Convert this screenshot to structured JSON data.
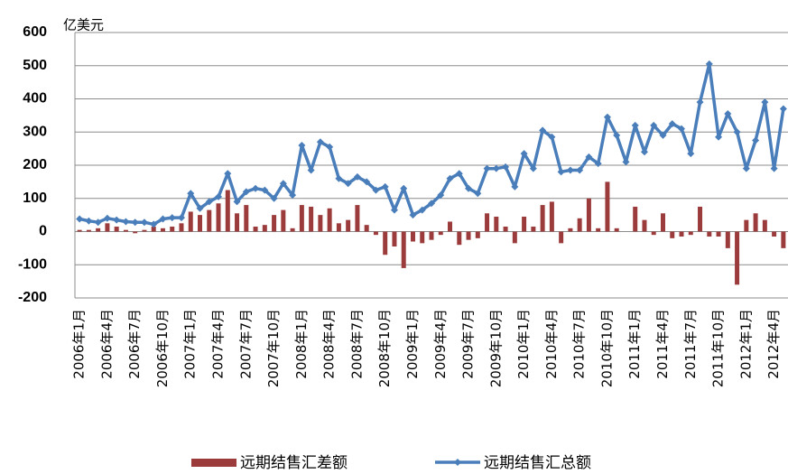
{
  "chart_data": {
    "type": "combo",
    "y_unit": "亿美元",
    "categories": [
      "2006年1月",
      null,
      null,
      "2006年4月",
      null,
      null,
      "2006年7月",
      null,
      null,
      "2006年10月",
      null,
      null,
      "2007年1月",
      null,
      null,
      "2007年4月",
      null,
      null,
      "2007年7月",
      null,
      null,
      "2007年10月",
      null,
      null,
      "2008年1月",
      null,
      null,
      "2008年4月",
      null,
      null,
      "2008年7月",
      null,
      null,
      "2008年10月",
      null,
      null,
      "2009年1月",
      null,
      null,
      "2009年4月",
      null,
      null,
      "2009年7月",
      null,
      null,
      "2009年10月",
      null,
      null,
      "2010年1月",
      null,
      null,
      "2010年4月",
      null,
      null,
      "2010年7月",
      null,
      null,
      "2010年10月",
      null,
      null,
      "2011年1月",
      null,
      null,
      "2011年4月",
      null,
      null,
      "2011年7月",
      null,
      null,
      "2011年10月",
      null,
      null,
      "2012年1月",
      null,
      null,
      "2012年4月",
      null
    ],
    "series": [
      {
        "name": "远期结售汇差额",
        "type": "bar",
        "color": "#9b3b3b",
        "values": [
          5,
          5,
          10,
          25,
          15,
          5,
          -5,
          5,
          15,
          10,
          15,
          25,
          60,
          50,
          65,
          85,
          125,
          55,
          80,
          15,
          20,
          50,
          65,
          10,
          80,
          75,
          50,
          70,
          25,
          35,
          80,
          20,
          -10,
          -70,
          -45,
          -110,
          -30,
          -35,
          -25,
          -10,
          30,
          -40,
          -25,
          -20,
          55,
          45,
          15,
          -35,
          45,
          15,
          80,
          90,
          -35,
          10,
          40,
          100,
          10,
          150,
          10,
          0,
          75,
          35,
          -10,
          55,
          -20,
          -15,
          -10,
          75,
          -15,
          -15,
          -50,
          -160,
          35,
          55,
          35,
          -15,
          -50
        ]
      },
      {
        "name": "远期结售汇总额",
        "type": "line",
        "color": "#4a7ebb",
        "values": [
          38,
          32,
          28,
          40,
          35,
          30,
          28,
          28,
          22,
          38,
          42,
          42,
          115,
          70,
          90,
          105,
          175,
          90,
          120,
          130,
          125,
          100,
          145,
          110,
          260,
          185,
          270,
          255,
          160,
          145,
          165,
          150,
          125,
          135,
          65,
          130,
          50,
          65,
          85,
          110,
          160,
          175,
          130,
          115,
          190,
          190,
          195,
          135,
          235,
          190,
          305,
          285,
          180,
          185,
          185,
          225,
          205,
          345,
          290,
          210,
          320,
          240,
          320,
          290,
          325,
          310,
          235,
          390,
          505,
          285,
          355,
          300,
          190,
          275,
          390,
          190,
          370
        ]
      }
    ],
    "ylim": [
      -200,
      600
    ],
    "yticks": [
      -200,
      -100,
      0,
      100,
      200,
      300,
      400,
      500,
      600
    ],
    "grid": true
  }
}
